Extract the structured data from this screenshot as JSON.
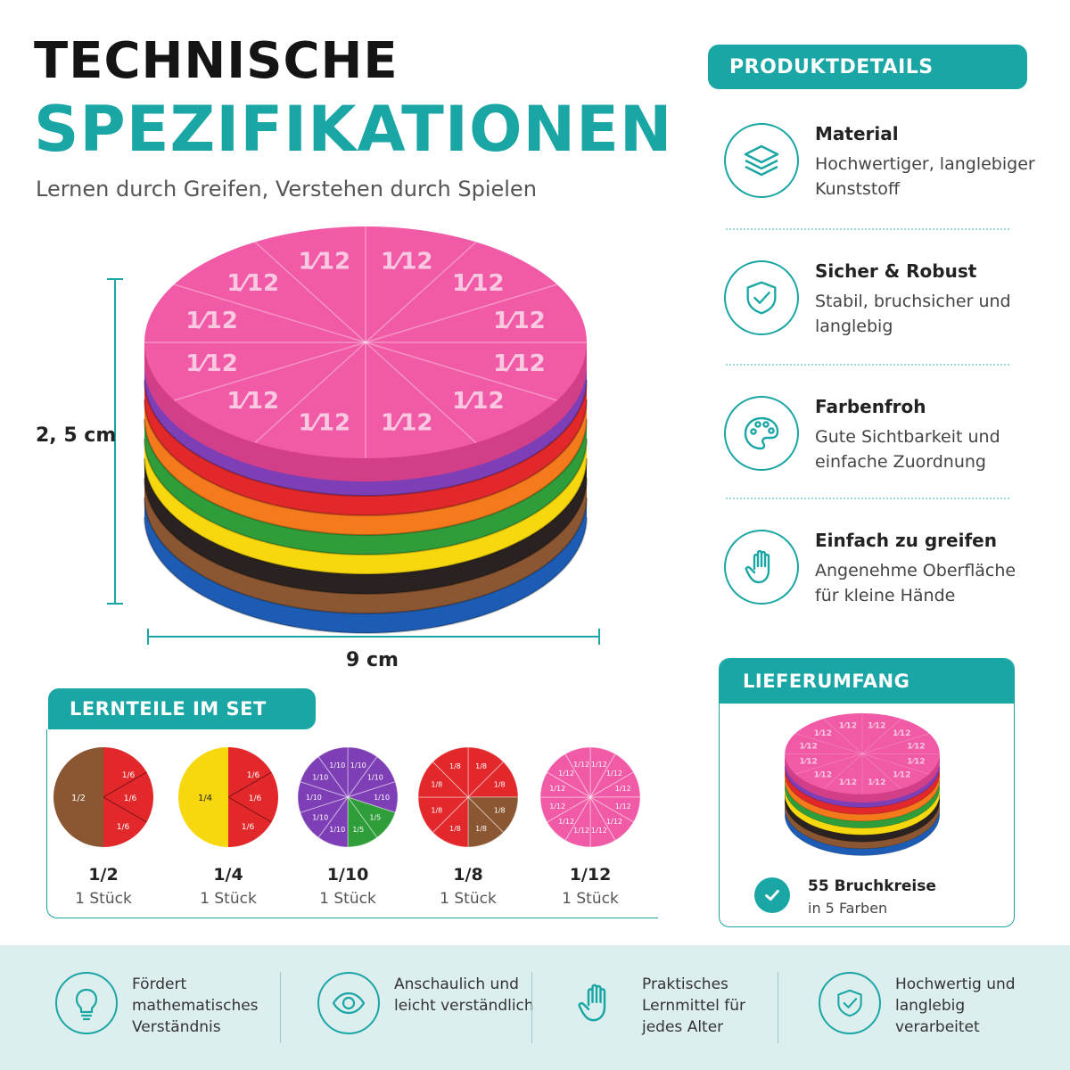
{
  "header": {
    "title_line1": "TECHNISCHE",
    "title_line2": "SPEZIFIKATIONEN",
    "subtitle": "Lernen durch Greifen, Verstehen durch Spielen"
  },
  "product_image": {
    "top_label": "1⁄12",
    "height_label": "2, 5 cm",
    "width_label": "9 cm"
  },
  "details": {
    "heading": "PRODUKTDETAILS",
    "items": [
      {
        "icon": "layers-icon",
        "title": "Material",
        "text": "Hochwertiger, langlebiger Kunststoff"
      },
      {
        "icon": "shield-check-icon",
        "title": "Sicher & Robust",
        "text": "Stabil, bruchsicher und langlebig"
      },
      {
        "icon": "palette-icon",
        "title": "Farbenfroh",
        "text": "Gute Sichtbarkeit und einfache Zuordnung"
      },
      {
        "icon": "hand-icon",
        "title": "Einfach zu greifen",
        "text": "Angenehme Oberfläche für kleine Hände"
      }
    ]
  },
  "lernteile": {
    "heading": "LERNTEILE IM SET",
    "pieces": [
      {
        "name": "1/2",
        "count": "1 Stück"
      },
      {
        "name": "1/4",
        "count": "1 Stück"
      },
      {
        "name": "1/10",
        "count": "1 Stück"
      },
      {
        "name": "1/8",
        "count": "1 Stück"
      },
      {
        "name": "1/12",
        "count": "1 Stück"
      }
    ]
  },
  "lieferumfang": {
    "heading": "LIEFERUMFANG",
    "line1": "55 Bruchkreise",
    "line2": "in 5 Farben"
  },
  "features": [
    {
      "icon": "lightbulb-icon",
      "text": "Fördert mathematisches Verständnis"
    },
    {
      "icon": "eye-icon",
      "text": "Anschaulich und leicht verständlich"
    },
    {
      "icon": "hand-icon",
      "text": "Praktisches Lernmittel für jedes Alter"
    },
    {
      "icon": "shield-check-icon",
      "text": "Hochwertig und langlebig verarbeitet"
    }
  ],
  "colors": {
    "accent": "#1aa6a5",
    "pink": "#f05aa6",
    "purple": "#7e3fb6",
    "red": "#e2282b",
    "orange": "#f47a1c",
    "green": "#2f9e3a",
    "yellow": "#f7d80e",
    "black": "#2a2220",
    "brown": "#8b5632",
    "blue": "#1d5cb5"
  }
}
